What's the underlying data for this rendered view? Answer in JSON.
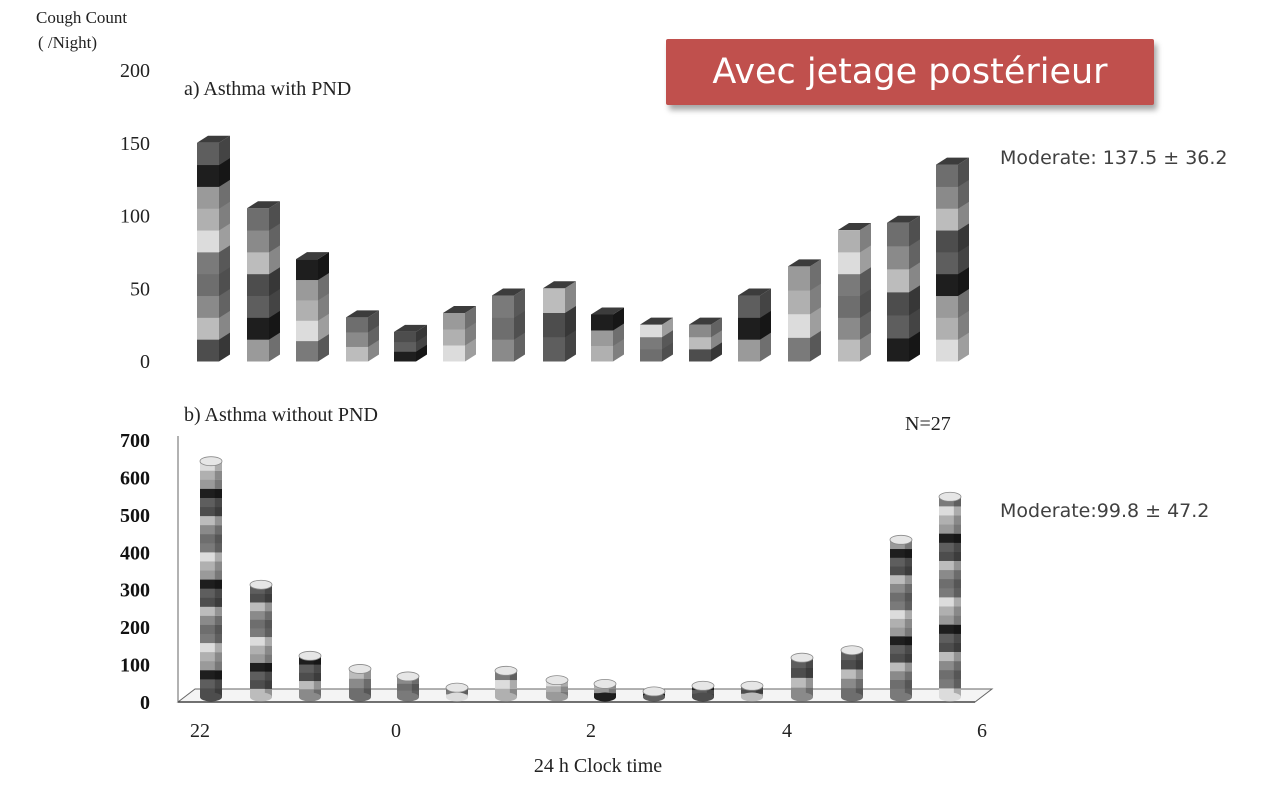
{
  "y_axis_title_line1": "Cough Count",
  "y_axis_title_line2": "( /Night)",
  "banner_text": "Avec jetage postérieur",
  "annotation_top": "Moderate: 137.5 ± 36.2",
  "annotation_bottom": "Moderate:99.8 ± 47.2",
  "n_label": "N=27",
  "colors": {
    "banner": "#c0504d",
    "bar_dark": "#4a4a4a",
    "bar_light": "#d9d9d9",
    "bar_black": "#1a1a1a"
  },
  "chart_data": [
    {
      "type": "bar",
      "title": "a) Asthma with PND",
      "stacked": true,
      "three_d": true,
      "ylim": [
        0,
        200
      ],
      "yticks": [
        0,
        50,
        100,
        150,
        200
      ],
      "values": [
        150,
        105,
        70,
        30,
        20,
        33,
        45,
        50,
        32,
        25,
        25,
        45,
        65,
        90,
        95,
        135
      ]
    },
    {
      "type": "bar",
      "title": "b) Asthma without PND",
      "stacked": true,
      "three_d": true,
      "ylim": [
        0,
        700
      ],
      "yticks": [
        0,
        100,
        200,
        300,
        400,
        500,
        600,
        700
      ],
      "xticks": [
        "22",
        "0",
        "2",
        "4",
        "6"
      ],
      "xlabel": "24 h Clock time",
      "values": [
        630,
        300,
        110,
        75,
        55,
        25,
        70,
        45,
        35,
        15,
        30,
        30,
        105,
        125,
        420,
        535
      ]
    }
  ]
}
